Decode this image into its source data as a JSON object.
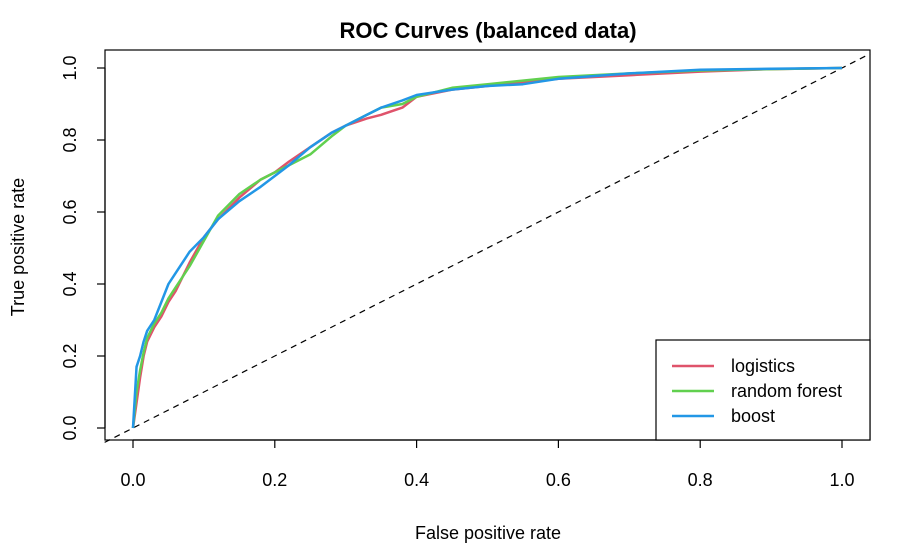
{
  "chart_data": {
    "type": "line",
    "title": "ROC Curves (balanced data)",
    "xlabel": "False positive rate",
    "ylabel": "True positive rate",
    "xlim": [
      0,
      1
    ],
    "ylim": [
      0,
      1
    ],
    "xticks": [
      "0.0",
      "0.2",
      "0.4",
      "0.6",
      "0.8",
      "1.0"
    ],
    "yticks": [
      "0.0",
      "0.2",
      "0.4",
      "0.6",
      "0.8",
      "1.0"
    ],
    "grid": false,
    "legend_position": "bottom-right",
    "reference_line": {
      "style": "dashed",
      "color": "#000000",
      "x": [
        0,
        1
      ],
      "y": [
        0,
        1
      ]
    },
    "series": [
      {
        "name": "logistics",
        "color": "#DF536B",
        "x": [
          0,
          0.005,
          0.01,
          0.015,
          0.02,
          0.03,
          0.04,
          0.05,
          0.06,
          0.08,
          0.1,
          0.12,
          0.15,
          0.18,
          0.2,
          0.22,
          0.25,
          0.28,
          0.3,
          0.33,
          0.35,
          0.38,
          0.4,
          0.45,
          0.5,
          0.55,
          0.6,
          0.7,
          0.8,
          0.9,
          1.0
        ],
        "y": [
          0,
          0.07,
          0.14,
          0.2,
          0.24,
          0.28,
          0.31,
          0.35,
          0.38,
          0.46,
          0.53,
          0.58,
          0.64,
          0.69,
          0.71,
          0.74,
          0.78,
          0.82,
          0.84,
          0.86,
          0.87,
          0.89,
          0.92,
          0.94,
          0.95,
          0.96,
          0.97,
          0.98,
          0.99,
          0.997,
          1.0
        ]
      },
      {
        "name": "random forest",
        "color": "#61D04F",
        "x": [
          0,
          0.005,
          0.01,
          0.015,
          0.02,
          0.03,
          0.04,
          0.05,
          0.06,
          0.08,
          0.1,
          0.12,
          0.15,
          0.18,
          0.2,
          0.22,
          0.25,
          0.28,
          0.3,
          0.33,
          0.35,
          0.38,
          0.4,
          0.45,
          0.5,
          0.55,
          0.6,
          0.7,
          0.8,
          0.9,
          1.0
        ],
        "y": [
          0,
          0.1,
          0.16,
          0.21,
          0.25,
          0.29,
          0.32,
          0.36,
          0.39,
          0.45,
          0.52,
          0.59,
          0.65,
          0.69,
          0.71,
          0.73,
          0.76,
          0.81,
          0.84,
          0.87,
          0.89,
          0.9,
          0.92,
          0.945,
          0.955,
          0.965,
          0.975,
          0.985,
          0.993,
          0.997,
          1.0
        ]
      },
      {
        "name": "boost",
        "color": "#2297E6",
        "x": [
          0,
          0.005,
          0.01,
          0.015,
          0.02,
          0.03,
          0.04,
          0.05,
          0.06,
          0.08,
          0.1,
          0.12,
          0.15,
          0.18,
          0.2,
          0.22,
          0.25,
          0.28,
          0.3,
          0.33,
          0.35,
          0.38,
          0.4,
          0.45,
          0.5,
          0.55,
          0.6,
          0.7,
          0.8,
          0.9,
          1.0
        ],
        "y": [
          0,
          0.17,
          0.2,
          0.24,
          0.27,
          0.3,
          0.35,
          0.4,
          0.43,
          0.49,
          0.53,
          0.58,
          0.63,
          0.67,
          0.7,
          0.73,
          0.78,
          0.82,
          0.84,
          0.87,
          0.89,
          0.91,
          0.925,
          0.94,
          0.95,
          0.955,
          0.97,
          0.985,
          0.995,
          0.998,
          1.0
        ]
      }
    ]
  }
}
